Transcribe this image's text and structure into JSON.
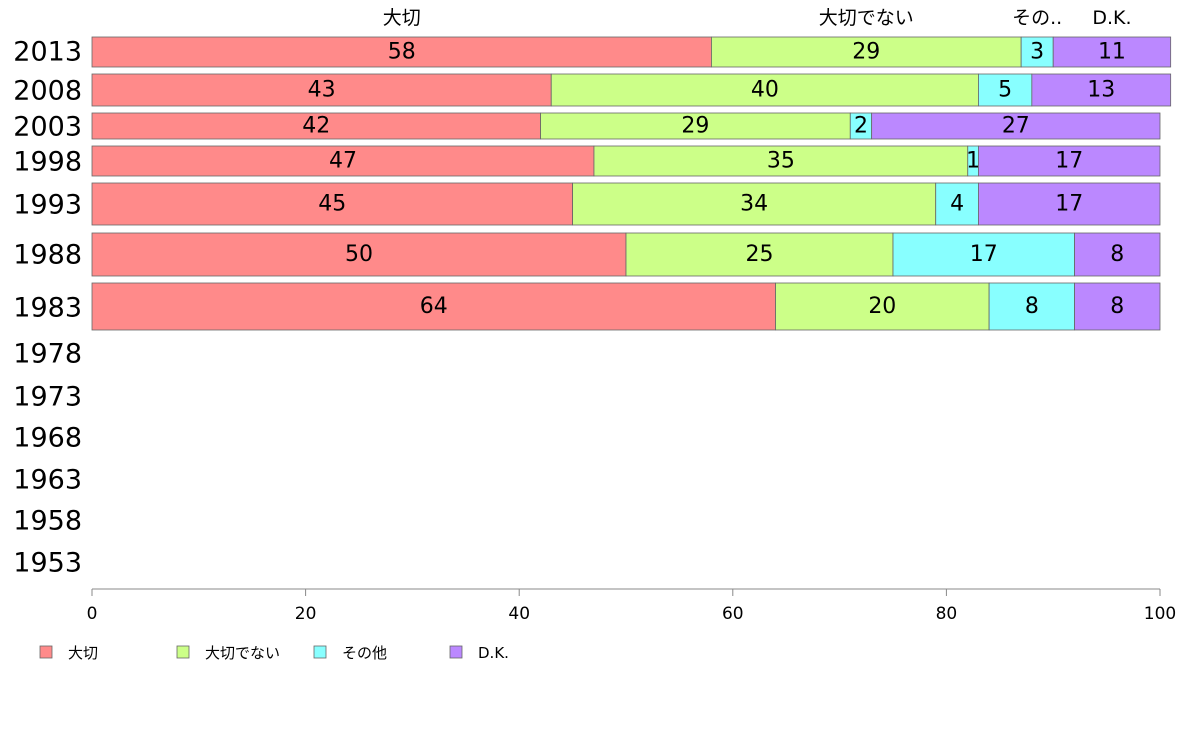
{
  "chart_data": {
    "type": "bar",
    "orientation": "horizontal",
    "stacked": true,
    "categories": [
      "2013",
      "2008",
      "2003",
      "1998",
      "1993",
      "1988",
      "1983",
      "1978",
      "1973",
      "1968",
      "1963",
      "1958",
      "1953"
    ],
    "series": [
      {
        "name": "大切",
        "color": "#ff8a8a",
        "values": [
          58,
          43,
          42,
          47,
          45,
          50,
          64,
          null,
          null,
          null,
          null,
          null,
          null
        ]
      },
      {
        "name": "大切でない",
        "color": "#ccff88",
        "values": [
          29,
          40,
          29,
          35,
          34,
          25,
          20,
          null,
          null,
          null,
          null,
          null,
          null
        ]
      },
      {
        "name": "その他",
        "color": "#88ffff",
        "values": [
          3,
          5,
          2,
          1,
          4,
          17,
          8,
          null,
          null,
          null,
          null,
          null,
          null
        ]
      },
      {
        "name": "D.K.",
        "color": "#bb88ff",
        "values": [
          11,
          13,
          27,
          17,
          17,
          8,
          8,
          null,
          null,
          null,
          null,
          null,
          null
        ]
      }
    ],
    "top_labels": [
      "大切",
      "大切でない",
      "その..",
      "D.K."
    ],
    "xlim": [
      0,
      100
    ],
    "xticks": [
      "0",
      "20",
      "40",
      "60",
      "80",
      "100"
    ],
    "grid": false,
    "legend_position": "bottom"
  }
}
